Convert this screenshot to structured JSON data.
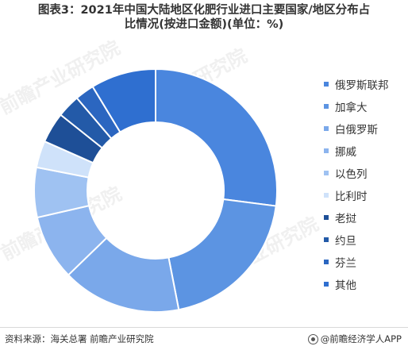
{
  "title_line1": "图表3：2021年中国大陆地区化肥行业进口主要国家/地区分布占",
  "title_line2": "比情况(按进口金额)(单位：%)",
  "source": "资料来源：海关总署 前瞻产业研究院",
  "brand": "@前瞻经济学人APP",
  "watermark": "前瞻产业研究院",
  "chart_data": {
    "type": "pie",
    "donut": true,
    "categories": [
      "俄罗斯联邦",
      "加拿大",
      "白俄罗斯",
      "挪威",
      "以色列",
      "比利时",
      "老挝",
      "约旦",
      "芬兰",
      "其他"
    ],
    "values": [
      26.5,
      19.5,
      15.5,
      8.5,
      6.5,
      3.5,
      4.0,
      3.0,
      2.5,
      8.5
    ],
    "colors": [
      "#4a86de",
      "#5c94e2",
      "#7aa8ea",
      "#8cb4ee",
      "#9fc2f2",
      "#cfe2fa",
      "#1e4f97",
      "#235aa8",
      "#2b66c0",
      "#2f6fd0"
    ],
    "legend_position": "right"
  }
}
